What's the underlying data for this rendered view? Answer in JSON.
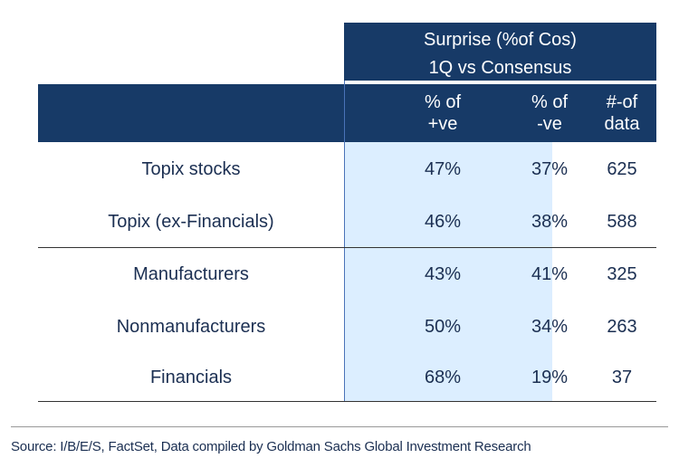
{
  "header": {
    "title_line1": "Surprise (%of Cos)",
    "title_line2": "1Q vs Consensus",
    "columns": [
      {
        "line1": "% of",
        "line2": "+ve"
      },
      {
        "line1": "% of",
        "line2": "-ve"
      },
      {
        "line1": "#-of",
        "line2": "data"
      }
    ]
  },
  "rows": [
    {
      "label": "Topix stocks",
      "pos": "47%",
      "neg": "37%",
      "count": "625"
    },
    {
      "label": "Topix (ex-Financials)",
      "pos": "46%",
      "neg": "38%",
      "count": "588"
    },
    {
      "label": "Manufacturers",
      "pos": "43%",
      "neg": "41%",
      "count": "325"
    },
    {
      "label": "Nonmanufacturers",
      "pos": "50%",
      "neg": "34%",
      "count": "263"
    },
    {
      "label": "Financials",
      "pos": "68%",
      "neg": "19%",
      "count": "37"
    }
  ],
  "source": "Source: I/B/E/S, FactSet, Data compiled by Goldman Sachs Global Investment Research",
  "colors": {
    "header_bg": "#173a67",
    "highlight_bg": "#dceeff",
    "text": "#1b2f52"
  }
}
